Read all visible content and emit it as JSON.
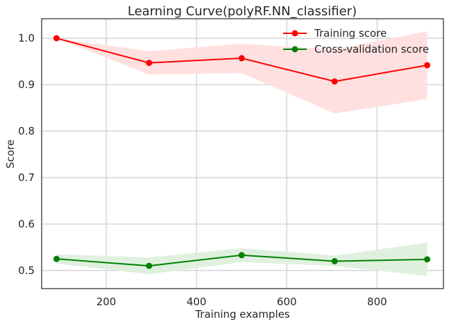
{
  "chart_data": {
    "type": "line",
    "title": "Learning Curve(polyRF.NN_classifier)",
    "xlabel": "Training examples",
    "ylabel": "Score",
    "xlim": [
      57,
      947
    ],
    "ylim": [
      0.461,
      1.042
    ],
    "xticks": [
      200,
      400,
      600,
      800
    ],
    "yticks": [
      0.5,
      0.6,
      0.7,
      0.8,
      0.9,
      1.0
    ],
    "ytick_labels": [
      "0.5",
      "0.6",
      "0.7",
      "0.8",
      "0.9",
      "1.0"
    ],
    "grid": true,
    "legend_position": "top-right",
    "x": [
      90,
      295,
      500,
      706,
      911
    ],
    "series": [
      {
        "name": "Training score",
        "color": "#ff0000",
        "band_color": "#ffe0e0",
        "values": [
          1.0,
          0.947,
          0.957,
          0.907,
          0.942
        ],
        "band_low": [
          1.0,
          0.922,
          0.925,
          0.838,
          0.869
        ],
        "band_high": [
          1.0,
          0.972,
          0.988,
          0.976,
          1.015
        ]
      },
      {
        "name": "Cross-validation score",
        "color": "#008000",
        "band_color": "#dff0df",
        "values": [
          0.525,
          0.51,
          0.533,
          0.52,
          0.524
        ],
        "band_low": [
          0.515,
          0.492,
          0.518,
          0.51,
          0.488
        ],
        "band_high": [
          0.535,
          0.528,
          0.548,
          0.532,
          0.56
        ]
      }
    ]
  }
}
